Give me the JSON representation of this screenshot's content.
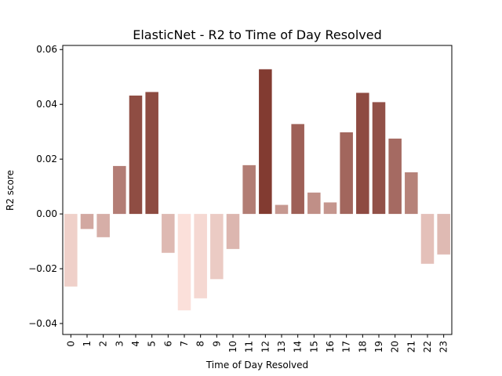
{
  "chart_data": {
    "type": "bar",
    "title": "ElasticNet - R2 to Time of Day Resolved",
    "xlabel": "Time of Day Resolved",
    "ylabel": "R2 score",
    "categories": [
      "0",
      "1",
      "2",
      "3",
      "4",
      "5",
      "6",
      "7",
      "8",
      "9",
      "10",
      "11",
      "12",
      "13",
      "14",
      "15",
      "16",
      "17",
      "18",
      "19",
      "20",
      "21",
      "22",
      "23"
    ],
    "values": [
      -0.0265,
      -0.0055,
      -0.0085,
      0.0175,
      0.0432,
      0.0445,
      -0.0142,
      -0.0352,
      -0.0308,
      -0.0238,
      -0.0128,
      0.0178,
      0.0528,
      0.0033,
      0.0328,
      0.0078,
      0.0042,
      0.0298,
      0.0442,
      0.0408,
      0.0275,
      0.0152,
      -0.0182,
      -0.0148
    ],
    "ylim": [
      -0.044,
      0.0615
    ],
    "yticks": [
      "0.06",
      "0.04",
      "0.02",
      "0.00",
      "−0.02",
      "−0.04"
    ],
    "ytick_values": [
      0.06,
      0.04,
      0.02,
      0.0,
      -0.02,
      -0.04
    ],
    "grid": false,
    "color_scale": {
      "negative_end": "#fbe0da",
      "positive_end": "#823b31"
    }
  }
}
